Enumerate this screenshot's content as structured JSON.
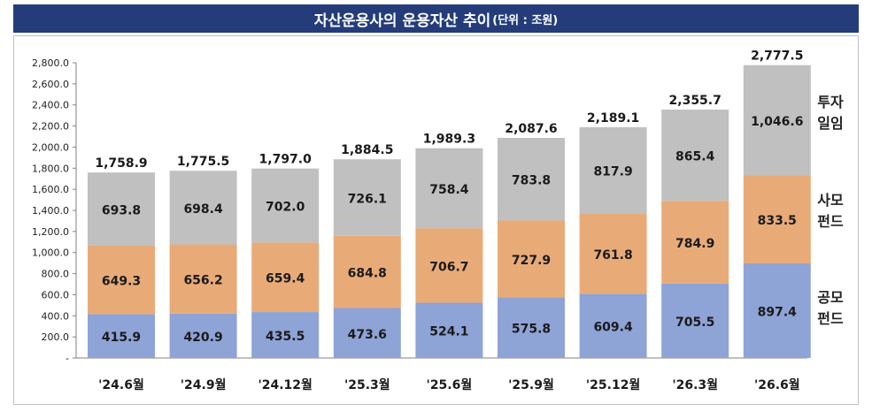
{
  "title": {
    "main": "자산운용사의 운용자산 추이",
    "unit": "(단위 : 조원)"
  },
  "side_labels": {
    "investment_advisory": [
      "투자",
      "일임"
    ],
    "private_fund": [
      "사모",
      "펀드"
    ],
    "public_fund": [
      "공모",
      "펀드"
    ]
  },
  "colors": {
    "public_fund": "#8ea3d6",
    "private_fund": "#e8ab78",
    "investment_advisory": "#c0c0c0",
    "title_bg": "#243d7a"
  },
  "chart_data": {
    "type": "bar",
    "stacked": true,
    "categories": [
      "'24.6월",
      "'24.9월",
      "'24.12월",
      "'25.3월",
      "'25.6월",
      "'25.9월",
      "'25.12월",
      "'26.3월",
      "'26.6월"
    ],
    "series": [
      {
        "name": "공모 펀드",
        "values": [
          415.9,
          420.9,
          435.5,
          473.6,
          524.1,
          575.8,
          609.4,
          705.5,
          897.4
        ]
      },
      {
        "name": "사모 펀드",
        "values": [
          649.3,
          656.2,
          659.4,
          684.8,
          706.7,
          727.9,
          761.8,
          784.9,
          833.5
        ]
      },
      {
        "name": "투자 일임",
        "values": [
          693.8,
          698.4,
          702.0,
          726.1,
          758.4,
          783.8,
          817.9,
          865.4,
          1046.6
        ]
      }
    ],
    "totals": [
      "1,758.9",
      "1,775.5",
      "1,797.0",
      "1,884.5",
      "1,989.3",
      "2,087.6",
      "2,189.1",
      "2,355.7",
      "2,777.5"
    ],
    "segment_labels": [
      [
        "415.9",
        "420.9",
        "435.5",
        "473.6",
        "524.1",
        "575.8",
        "609.4",
        "705.5",
        "897.4"
      ],
      [
        "649.3",
        "656.2",
        "659.4",
        "684.8",
        "706.7",
        "727.9",
        "761.8",
        "784.9",
        "833.5"
      ],
      [
        "693.8",
        "698.4",
        "702.0",
        "726.1",
        "758.4",
        "783.8",
        "817.9",
        "865.4",
        "1,046.6"
      ]
    ],
    "y_ticks": [
      "-",
      "200.0",
      "400.0",
      "600.0",
      "800.0",
      "1,000.0",
      "1,200.0",
      "1,400.0",
      "1,600.0",
      "1,800.0",
      "2,000.0",
      "2,200.0",
      "2,400.0",
      "2,600.0",
      "2,800.0"
    ],
    "ylim": [
      0,
      2800
    ],
    "y_step": 200,
    "grid": false,
    "legend": "right"
  }
}
